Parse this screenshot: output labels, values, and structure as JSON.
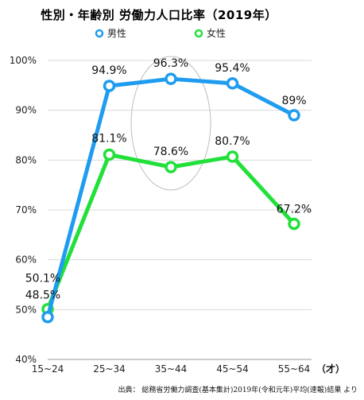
{
  "title": "性別・年齢別 労働力人口比率（2019年）",
  "source": "出典： 総務省労働力調査(基本集計)2019年(令和元年)平均(速報)結果 より",
  "x_unit": "（才）",
  "chart_data": {
    "type": "line",
    "categories": [
      "15~24",
      "25~34",
      "35~44",
      "45~54",
      "55~64"
    ],
    "ylim": [
      40,
      100
    ],
    "yticks": [
      "40%",
      "50%",
      "60%",
      "70%",
      "80%",
      "90%",
      "100%"
    ],
    "legend_position": "top",
    "grid": true,
    "highlight_category": "35~44",
    "series": [
      {
        "name": "男性",
        "color": "#1f9cf0",
        "values": [
          48.5,
          94.9,
          96.3,
          95.4,
          89
        ],
        "labels": [
          "48.5%",
          "94.9%",
          "96.3%",
          "95.4%",
          "89%"
        ]
      },
      {
        "name": "女性",
        "color": "#22e03a",
        "values": [
          50.1,
          81.1,
          78.6,
          80.7,
          67.2
        ],
        "labels": [
          "50.1%",
          "81.1%",
          "78.6%",
          "80.7%",
          "67.2%"
        ]
      }
    ]
  }
}
